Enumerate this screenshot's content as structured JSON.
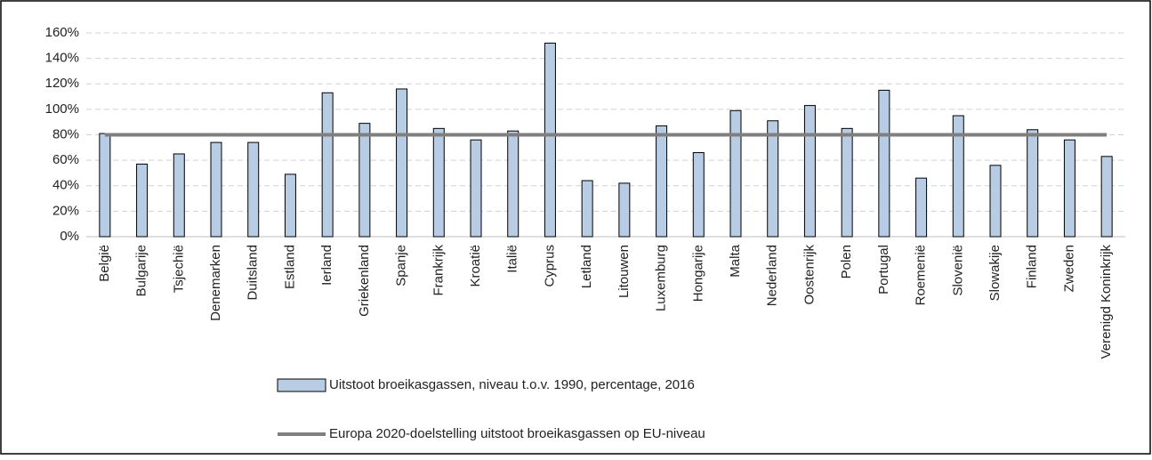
{
  "chart_data": {
    "type": "bar",
    "categories": [
      "België",
      "Bulgarije",
      "Tsjechië",
      "Denemarken",
      "Duitsland",
      "Estland",
      "Ierland",
      "Griekenland",
      "Spanje",
      "Frankrijk",
      "Kroatië",
      "Italië",
      "Cyprus",
      "Letland",
      "Litouwen",
      "Luxemburg",
      "Hongarije",
      "Malta",
      "Nederland",
      "Oostenrijk",
      "Polen",
      "Portugal",
      "Roemenië",
      "Slovenië",
      "Slowakije",
      "Finland",
      "Zweden",
      "Verenigd Koninkrijk"
    ],
    "series": [
      {
        "name": "Uitstoot broeikasgassen, niveau t.o.v. 1990, percentage, 2016",
        "type": "bar",
        "color": "#b8cce4",
        "values": [
          81,
          57,
          65,
          74,
          74,
          49,
          113,
          89,
          116,
          85,
          76,
          83,
          152,
          44,
          42,
          87,
          66,
          99,
          91,
          103,
          85,
          115,
          46,
          95,
          56,
          84,
          76,
          63
        ]
      },
      {
        "name": "Europa 2020-doelstelling uitstoot broeikasgassen op EU-niveau",
        "type": "line",
        "color": "#7f7f7f",
        "values": [
          80,
          80,
          80,
          80,
          80,
          80,
          80,
          80,
          80,
          80,
          80,
          80,
          80,
          80,
          80,
          80,
          80,
          80,
          80,
          80,
          80,
          80,
          80,
          80,
          80,
          80,
          80,
          80
        ]
      }
    ],
    "ylim": [
      0,
      160
    ],
    "yticks": [
      {
        "value": 0,
        "label": "0%"
      },
      {
        "value": 20,
        "label": "20%"
      },
      {
        "value": 40,
        "label": "40%"
      },
      {
        "value": 60,
        "label": "60%"
      },
      {
        "value": 80,
        "label": "80%"
      },
      {
        "value": 100,
        "label": "100%"
      },
      {
        "value": 120,
        "label": "120%"
      },
      {
        "value": 140,
        "label": "140%"
      },
      {
        "value": 160,
        "label": "160%"
      }
    ],
    "grid": true
  }
}
